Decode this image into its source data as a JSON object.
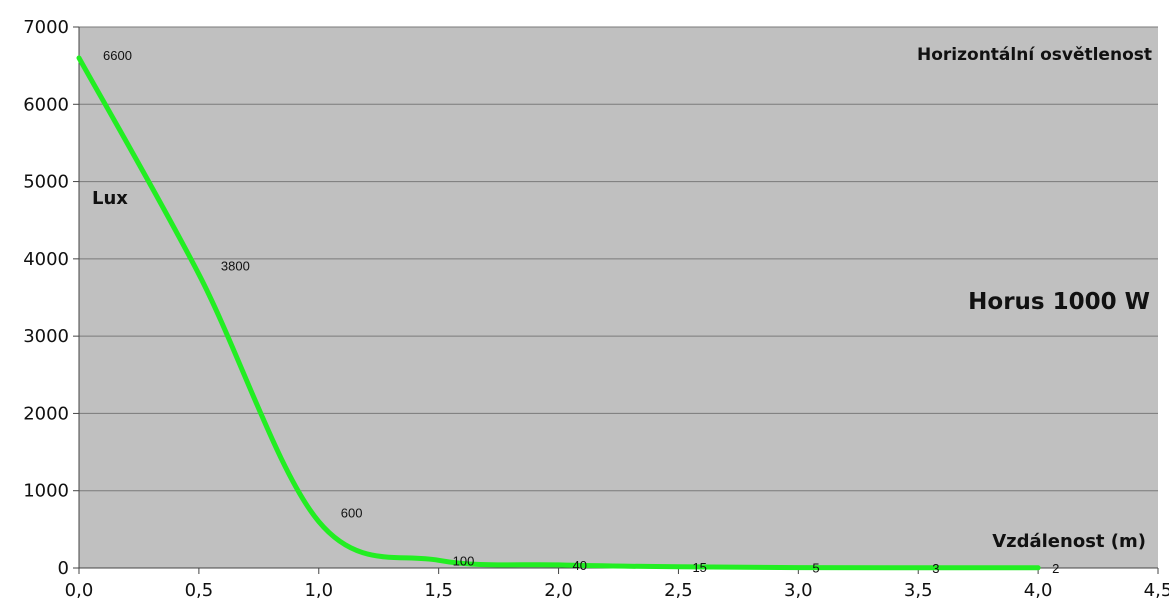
{
  "chart_data": {
    "type": "line",
    "title": "",
    "xlabel": "Vzdálenost (m)",
    "ylabel": "Lux",
    "annotations": {
      "top_right": "Horizontální osvětlenost",
      "model": "Horus 1000 W"
    },
    "xlim": [
      0,
      4.5
    ],
    "ylim": [
      0,
      7000
    ],
    "x_ticks": [
      "0,0",
      "0,5",
      "1,0",
      "1,5",
      "2,0",
      "2,5",
      "3,0",
      "3,5",
      "4,0",
      "4,5"
    ],
    "y_ticks": [
      "0",
      "1000",
      "2000",
      "3000",
      "4000",
      "5000",
      "6000",
      "7000"
    ],
    "grid": true,
    "background": "#c0c0c0",
    "series": [
      {
        "color": "#22ee22",
        "x": [
          0.0,
          0.5,
          1.0,
          1.5,
          2.0,
          2.5,
          3.0,
          3.5,
          4.0
        ],
        "values": [
          6600,
          3800,
          600,
          100,
          40,
          15,
          5,
          3,
          2
        ],
        "labels": [
          "6600",
          "3800",
          "600",
          "100",
          "40",
          "15",
          "5",
          "3",
          "2"
        ]
      }
    ]
  }
}
